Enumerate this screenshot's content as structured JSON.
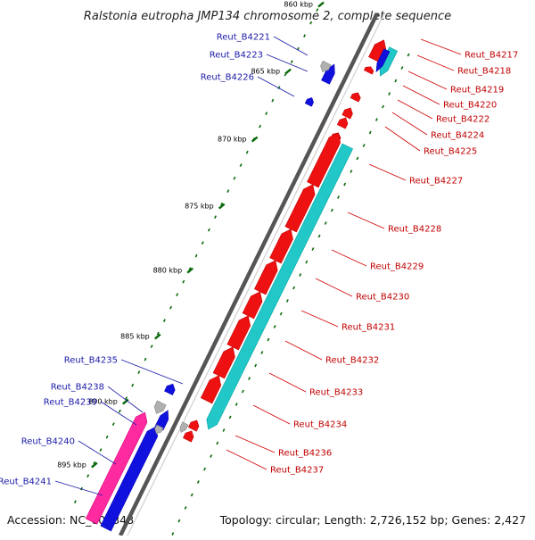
{
  "title": "Ralstonia eutropha JMP134 chromosome 2, complete sequence",
  "footer": {
    "accession": "Accession: NC_007348",
    "topology": "Topology: circular; Length: 2,726,152 bp; Genes: 2,427"
  },
  "ticks": [
    "860 kbp",
    "865 kbp",
    "870 kbp",
    "875 kbp",
    "880 kbp",
    "885 kbp",
    "890 kbp",
    "895 kbp"
  ],
  "labels_left": [
    "Reut_B4221",
    "Reut_B4223",
    "Reut_B4226",
    "Reut_B4235",
    "Reut_B4238",
    "Reut_B4239",
    "Reut_B4240",
    "Reut_B4241"
  ],
  "labels_right": [
    "Reut_B4217",
    "Reut_B4218",
    "Reut_B4219",
    "Reut_B4220",
    "Reut_B4222",
    "Reut_B4224",
    "Reut_B4225",
    "Reut_B4227",
    "Reut_B4228",
    "Reut_B4229",
    "Reut_B4230",
    "Reut_B4231",
    "Reut_B4232",
    "Reut_B4233",
    "Reut_B4234",
    "Reut_B4236",
    "Reut_B4237"
  ],
  "colors": {
    "forward_cds": "#ee1111",
    "reverse_cds": "#1111dd",
    "rna": "#22c8c8",
    "pseudo": "#ff2aa0",
    "misc": "#b0b0b0",
    "backbone": "#7a7a7a",
    "tick": "#0a6a0a",
    "left_label": "#1a1aa8",
    "right_label": "#c00000"
  }
}
